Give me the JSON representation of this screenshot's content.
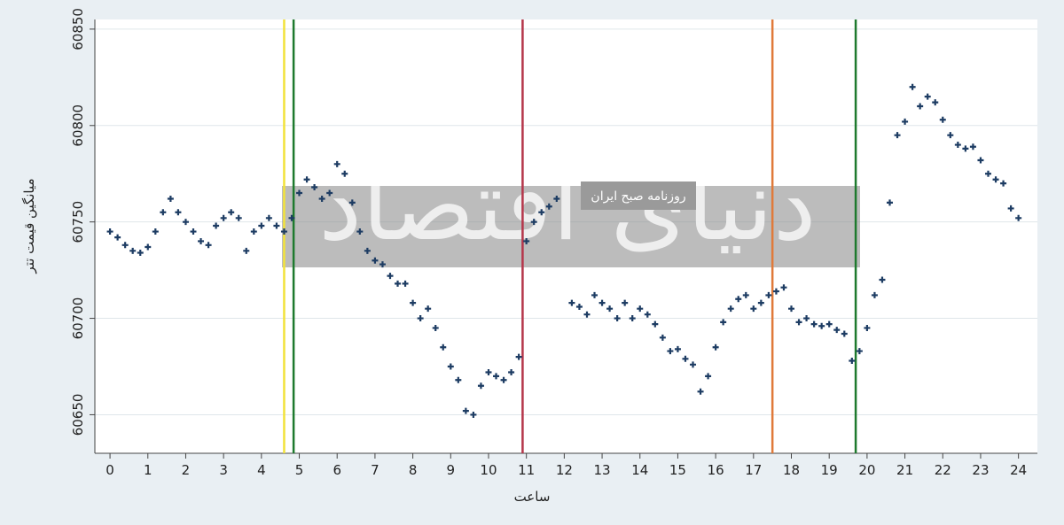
{
  "chart_data": {
    "type": "scatter",
    "title_y": "میانگین قیمت تتر",
    "x_label": "ساعت",
    "watermark": {
      "main": "دنیای اقتصاد",
      "sub": "روزنامه صبح ایران"
    },
    "xlim": [
      -0.4,
      24.5
    ],
    "ylim": [
      60630,
      60855
    ],
    "xticks": [
      0,
      1,
      2,
      3,
      4,
      5,
      6,
      7,
      8,
      9,
      10,
      11,
      12,
      13,
      14,
      15,
      16,
      17,
      18,
      19,
      20,
      21,
      22,
      23,
      24
    ],
    "yticks": [
      60650,
      60700,
      60750,
      60800,
      60850
    ],
    "grid": true,
    "vertical_lines": [
      {
        "x": 4.6,
        "color": "#f2e23a"
      },
      {
        "x": 4.85,
        "color": "#1e7a2e"
      },
      {
        "x": 10.9,
        "color": "#b5364a"
      },
      {
        "x": 17.5,
        "color": "#e07a3a"
      },
      {
        "x": 19.7,
        "color": "#1e7a2e"
      }
    ],
    "series": [
      {
        "color": "#1d3c63",
        "x": [
          0,
          0.2,
          0.4,
          0.6,
          0.8,
          1.0,
          1.2,
          1.4,
          1.6,
          1.8,
          2.0,
          2.2,
          2.4,
          2.6,
          2.8,
          3.0,
          3.2,
          3.4,
          3.6,
          3.8,
          4.0,
          4.2,
          4.4,
          4.6,
          4.8,
          5.0,
          5.2,
          5.4,
          5.6,
          5.8,
          6.0,
          6.2,
          6.4,
          6.6,
          6.8,
          7.0,
          7.2,
          7.4,
          7.6,
          7.8,
          8.0,
          8.2,
          8.4,
          8.6,
          8.8,
          9.0,
          9.2,
          9.4,
          9.6,
          9.8,
          10.0,
          10.2,
          10.4,
          10.6,
          10.8,
          11.0,
          11.2,
          11.4,
          11.6,
          11.8,
          12.2,
          12.4,
          12.6,
          12.8,
          13.0,
          13.2,
          13.4,
          13.6,
          13.8,
          14.0,
          14.2,
          14.4,
          14.6,
          14.8,
          15.0,
          15.2,
          15.4,
          15.6,
          15.8,
          16.0,
          16.2,
          16.4,
          16.6,
          16.8,
          17.0,
          17.2,
          17.4,
          17.6,
          17.8,
          18.0,
          18.2,
          18.4,
          18.6,
          18.8,
          19.0,
          19.2,
          19.4,
          19.6,
          19.8,
          20.0,
          20.2,
          20.4,
          20.6,
          20.8,
          21.0,
          21.2,
          21.4,
          21.6,
          21.8,
          22.0,
          22.2,
          22.4,
          22.6,
          22.8,
          23.0,
          23.2,
          23.4,
          23.6,
          23.8,
          24.0
        ],
        "values": [
          60745,
          60742,
          60738,
          60735,
          60734,
          60737,
          60745,
          60755,
          60762,
          60755,
          60750,
          60745,
          60740,
          60738,
          60748,
          60752,
          60755,
          60752,
          60735,
          60745,
          60748,
          60752,
          60748,
          60745,
          60752,
          60765,
          60772,
          60768,
          60762,
          60765,
          60780,
          60775,
          60760,
          60745,
          60735,
          60730,
          60728,
          60722,
          60718,
          60718,
          60708,
          60700,
          60705,
          60695,
          60685,
          60675,
          60668,
          60652,
          60650,
          60665,
          60672,
          60670,
          60668,
          60672,
          60680,
          60740,
          60750,
          60755,
          60758,
          60762,
          60708,
          60706,
          60702,
          60712,
          60708,
          60705,
          60700,
          60708,
          60700,
          60705,
          60702,
          60697,
          60690,
          60683,
          60684,
          60679,
          60676,
          60662,
          60670,
          60685,
          60698,
          60705,
          60710,
          60712,
          60705,
          60708,
          60712,
          60714,
          60716,
          60705,
          60698,
          60700,
          60697,
          60696,
          60697,
          60694,
          60692,
          60678,
          60683,
          60695,
          60712,
          60720,
          60760,
          60795,
          60802,
          60820,
          60810,
          60815,
          60812,
          60803,
          60795,
          60790,
          60788,
          60789,
          60782,
          60775,
          60772,
          60770,
          60757,
          60752
        ]
      }
    ]
  }
}
